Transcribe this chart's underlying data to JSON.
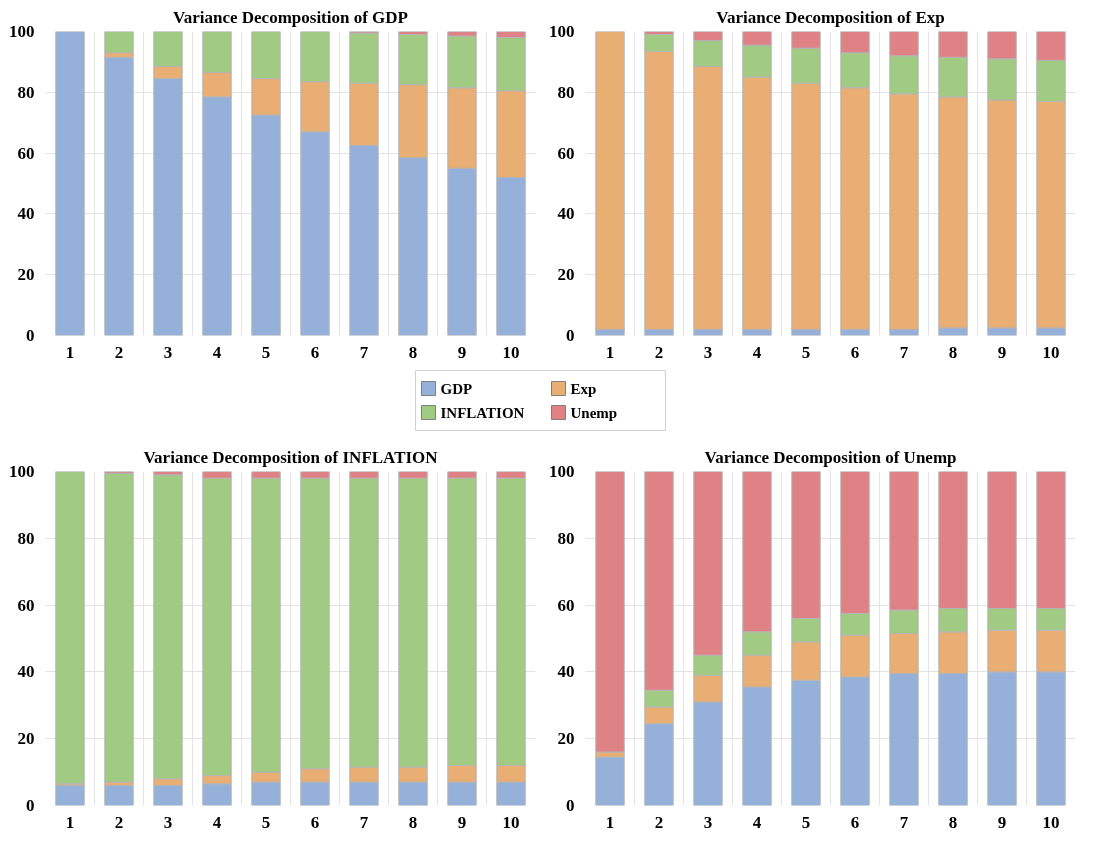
{
  "chart_data": [
    {
      "type": "bar",
      "stacked": true,
      "title": "Variance Decomposition of GDP",
      "categories": [
        "1",
        "2",
        "3",
        "4",
        "5",
        "6",
        "7",
        "8",
        "9",
        "10"
      ],
      "ylim": [
        0,
        100
      ],
      "yticks": [
        0,
        20,
        40,
        60,
        80,
        100
      ],
      "grid": true,
      "legend": "bottom",
      "series": [
        {
          "name": "GDP",
          "color": "#95b0d9",
          "values": [
            100,
            91.5,
            84.5,
            78.5,
            72.5,
            67,
            62.5,
            58.5,
            55,
            52
          ]
        },
        {
          "name": "Exp",
          "color": "#e8ae74",
          "values": [
            0,
            1.5,
            4,
            8,
            12,
            16.5,
            20.5,
            24,
            26.5,
            28.5
          ]
        },
        {
          "name": "INFLATION",
          "color": "#a1ca82",
          "values": [
            0,
            7,
            11.5,
            13.5,
            15.5,
            16.5,
            16.5,
            16.5,
            17,
            17.5
          ]
        },
        {
          "name": "Unemp",
          "color": "#de8285",
          "values": [
            0,
            0,
            0,
            0,
            0,
            0,
            0.5,
            1,
            1.5,
            2
          ]
        }
      ]
    },
    {
      "type": "bar",
      "stacked": true,
      "title": "Variance Decomposition of Exp",
      "categories": [
        "1",
        "2",
        "3",
        "4",
        "5",
        "6",
        "7",
        "8",
        "9",
        "10"
      ],
      "ylim": [
        0,
        100
      ],
      "yticks": [
        0,
        20,
        40,
        60,
        80,
        100
      ],
      "grid": true,
      "series": [
        {
          "color": "#95b0d9",
          "values": [
            2,
            2,
            2,
            2,
            2,
            2,
            2,
            2.5,
            2.5,
            2.5
          ]
        },
        {
          "color": "#e8ae74",
          "values": [
            98,
            91.5,
            86.5,
            83,
            81,
            79.5,
            77.5,
            76,
            75,
            74.5
          ]
        },
        {
          "color": "#a1ca82",
          "values": [
            0,
            5.5,
            8.5,
            10.5,
            11.5,
            11.5,
            12.5,
            13,
            13.5,
            13.5
          ]
        },
        {
          "color": "#de8285",
          "values": [
            0,
            1,
            3,
            4.5,
            5.5,
            7,
            8,
            8.5,
            9,
            9.5
          ]
        }
      ]
    },
    {
      "type": "bar",
      "stacked": true,
      "title": "Variance Decomposition of INFLATION",
      "categories": [
        "1",
        "2",
        "3",
        "4",
        "5",
        "6",
        "7",
        "8",
        "9",
        "10"
      ],
      "ylim": [
        0,
        100
      ],
      "yticks": [
        0,
        20,
        40,
        60,
        80,
        100
      ],
      "grid": true,
      "series": [
        {
          "color": "#95b0d9",
          "values": [
            6,
            6,
            6,
            6.5,
            7,
            7,
            7,
            7,
            7,
            7
          ]
        },
        {
          "color": "#e8ae74",
          "values": [
            0.5,
            1,
            2,
            2.5,
            3,
            4,
            4.5,
            4.5,
            5,
            5
          ]
        },
        {
          "color": "#a1ca82",
          "values": [
            93.5,
            92.5,
            91,
            89,
            88,
            87,
            86.5,
            86.5,
            86,
            86
          ]
        },
        {
          "color": "#de8285",
          "values": [
            0,
            0.5,
            1,
            2,
            2,
            2,
            2,
            2,
            2,
            2
          ]
        }
      ]
    },
    {
      "type": "bar",
      "stacked": true,
      "title": "Variance Decomposition of Unemp",
      "categories": [
        "1",
        "2",
        "3",
        "4",
        "5",
        "6",
        "7",
        "8",
        "9",
        "10"
      ],
      "ylim": [
        0,
        100
      ],
      "yticks": [
        0,
        20,
        40,
        60,
        80,
        100
      ],
      "grid": true,
      "series": [
        {
          "color": "#95b0d9",
          "values": [
            14.5,
            24.5,
            31,
            35.5,
            37.5,
            38.5,
            39.5,
            39.5,
            40,
            40
          ]
        },
        {
          "color": "#e8ae74",
          "values": [
            1.5,
            5,
            8,
            9.5,
            11.5,
            12.5,
            12,
            12.5,
            12.5,
            12.5
          ]
        },
        {
          "color": "#a1ca82",
          "values": [
            0,
            5,
            6,
            7,
            7,
            6.5,
            7,
            7,
            6.5,
            6.5
          ]
        },
        {
          "color": "#de8285",
          "values": [
            84,
            65.5,
            55,
            48,
            44,
            42.5,
            41.5,
            41,
            41,
            41
          ]
        }
      ]
    }
  ]
}
